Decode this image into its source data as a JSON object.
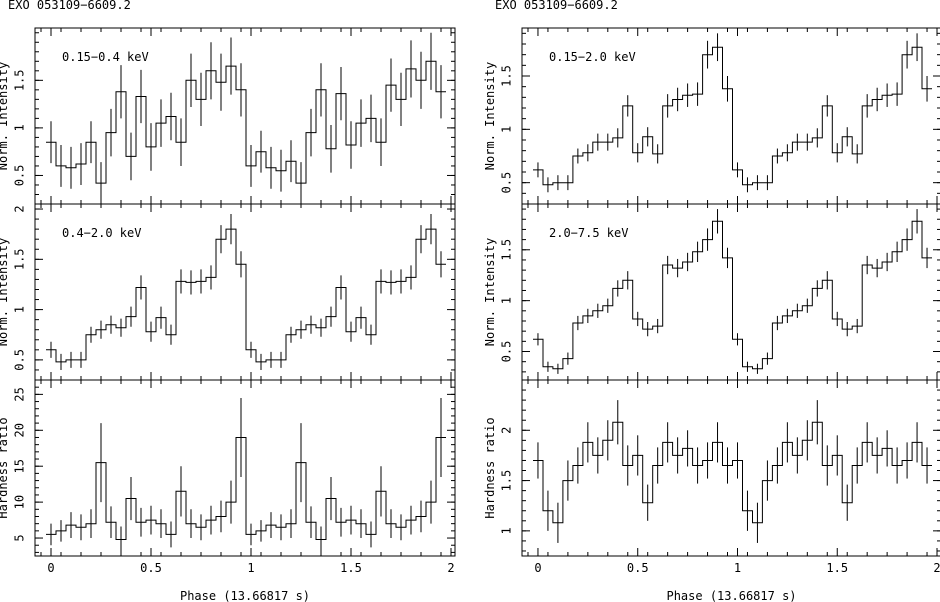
{
  "chart_data": {
    "type": "line",
    "grid": false,
    "figure_style": "monochrome histogram step plots with vertical error bars",
    "columns": [
      {
        "object": "EXO 053109−6609.2",
        "xlabel": "Phase (13.66817 s)",
        "xlim": [
          -0.08,
          2.02
        ],
        "x_ticks": [
          0,
          0.5,
          1,
          1.5,
          2
        ],
        "x_tick_labels": [
          "0",
          "0.5",
          "1",
          "1.5",
          "2"
        ],
        "panels": [
          {
            "label": "0.15−0.4 keV",
            "ylabel": "Norm. Intensity",
            "ylim": [
              0.2,
              2.05
            ],
            "y_ticks": [
              0.5,
              1,
              1.5
            ],
            "y_tick_labels": [
              "0.5",
              "1",
              "1.5"
            ],
            "x": [
              0.0,
              0.05,
              0.1,
              0.15,
              0.2,
              0.25,
              0.3,
              0.35,
              0.4,
              0.45,
              0.5,
              0.55,
              0.6,
              0.65,
              0.7,
              0.75,
              0.8,
              0.85,
              0.9,
              0.95,
              1.0,
              1.05,
              1.1,
              1.15,
              1.2,
              1.25,
              1.3,
              1.35,
              1.4,
              1.45,
              1.5,
              1.55,
              1.6,
              1.65,
              1.7,
              1.75,
              1.8,
              1.85,
              1.9,
              1.95
            ],
            "y": [
              0.85,
              0.6,
              0.58,
              0.62,
              0.85,
              0.42,
              0.95,
              1.38,
              0.7,
              1.33,
              0.8,
              1.05,
              1.12,
              0.85,
              1.5,
              1.3,
              1.6,
              1.48,
              1.65,
              1.4,
              0.6,
              0.75,
              0.58,
              0.55,
              0.65,
              0.42,
              0.95,
              1.4,
              0.78,
              1.36,
              0.82,
              1.05,
              1.1,
              0.85,
              1.45,
              1.3,
              1.62,
              1.5,
              1.7,
              1.38
            ],
            "err": [
              0.22,
              0.22,
              0.22,
              0.22,
              0.22,
              0.22,
              0.25,
              0.28,
              0.25,
              0.28,
              0.25,
              0.25,
              0.25,
              0.25,
              0.28,
              0.28,
              0.3,
              0.3,
              0.3,
              0.28,
              0.22,
              0.22,
              0.22,
              0.22,
              0.22,
              0.22,
              0.25,
              0.28,
              0.25,
              0.28,
              0.25,
              0.25,
              0.25,
              0.25,
              0.28,
              0.28,
              0.3,
              0.3,
              0.3,
              0.28
            ]
          },
          {
            "label": "0.4−2.0 keV",
            "ylabel": "Norm. Intensity",
            "ylim": [
              0.3,
              2.05
            ],
            "y_ticks": [
              0.5,
              1,
              1.5,
              2
            ],
            "y_tick_labels": [
              "0.5",
              "1",
              "1.5",
              "2"
            ],
            "x": [
              0.0,
              0.05,
              0.1,
              0.15,
              0.2,
              0.25,
              0.3,
              0.35,
              0.4,
              0.45,
              0.5,
              0.55,
              0.6,
              0.65,
              0.7,
              0.75,
              0.8,
              0.85,
              0.9,
              0.95,
              1.0,
              1.05,
              1.1,
              1.15,
              1.2,
              1.25,
              1.3,
              1.35,
              1.4,
              1.45,
              1.5,
              1.55,
              1.6,
              1.65,
              1.7,
              1.75,
              1.8,
              1.85,
              1.9,
              1.95
            ],
            "y": [
              0.6,
              0.48,
              0.5,
              0.5,
              0.75,
              0.8,
              0.85,
              0.82,
              0.93,
              1.22,
              0.78,
              0.92,
              0.75,
              1.28,
              1.27,
              1.28,
              1.32,
              1.7,
              1.8,
              1.45,
              0.6,
              0.48,
              0.5,
              0.5,
              0.75,
              0.8,
              0.85,
              0.82,
              0.93,
              1.22,
              0.78,
              0.92,
              0.75,
              1.28,
              1.27,
              1.28,
              1.32,
              1.7,
              1.8,
              1.45
            ],
            "err": [
              0.08,
              0.08,
              0.08,
              0.08,
              0.08,
              0.09,
              0.09,
              0.09,
              0.1,
              0.12,
              0.1,
              0.11,
              0.1,
              0.12,
              0.12,
              0.12,
              0.12,
              0.14,
              0.15,
              0.13,
              0.08,
              0.08,
              0.08,
              0.08,
              0.08,
              0.09,
              0.09,
              0.09,
              0.1,
              0.12,
              0.1,
              0.11,
              0.1,
              0.12,
              0.12,
              0.12,
              0.12,
              0.14,
              0.15,
              0.13
            ]
          },
          {
            "label": "",
            "ylabel": "Hardness ratio",
            "ylim": [
              2.5,
              27.0
            ],
            "y_ticks": [
              5,
              10,
              15,
              20,
              25
            ],
            "y_tick_labels": [
              "5",
              "10",
              "15",
              "20",
              "25"
            ],
            "x": [
              0.0,
              0.05,
              0.1,
              0.15,
              0.2,
              0.25,
              0.3,
              0.35,
              0.4,
              0.45,
              0.5,
              0.55,
              0.6,
              0.65,
              0.7,
              0.75,
              0.8,
              0.85,
              0.9,
              0.95,
              1.0,
              1.05,
              1.1,
              1.15,
              1.2,
              1.25,
              1.3,
              1.35,
              1.4,
              1.45,
              1.5,
              1.55,
              1.6,
              1.65,
              1.7,
              1.75,
              1.8,
              1.85,
              1.9,
              1.95
            ],
            "y": [
              5.5,
              6.0,
              6.8,
              6.5,
              7.0,
              15.5,
              7.2,
              4.8,
              10.5,
              7.2,
              7.5,
              7.0,
              5.5,
              11.5,
              7.0,
              6.5,
              7.5,
              8.0,
              10.0,
              19.0,
              5.5,
              6.0,
              6.8,
              6.5,
              7.0,
              15.5,
              7.2,
              4.8,
              10.5,
              7.2,
              7.5,
              7.0,
              5.5,
              11.5,
              7.0,
              6.5,
              7.5,
              8.0,
              10.0,
              19.0
            ],
            "err": [
              1.5,
              1.5,
              1.8,
              1.8,
              2.0,
              5.5,
              2.2,
              1.8,
              3.0,
              2.0,
              2.0,
              2.0,
              1.8,
              3.5,
              2.0,
              1.8,
              2.0,
              2.2,
              3.0,
              5.5,
              1.5,
              1.5,
              1.8,
              1.8,
              2.0,
              5.5,
              2.2,
              1.8,
              3.0,
              2.0,
              2.0,
              2.0,
              1.8,
              3.5,
              2.0,
              1.8,
              2.0,
              2.2,
              3.0,
              5.5
            ]
          }
        ]
      },
      {
        "object": "EXO 053109−6609.2",
        "xlabel": "Phase (13.66817 s)",
        "xlim": [
          -0.08,
          2.02
        ],
        "x_ticks": [
          0,
          0.5,
          1,
          1.5,
          2
        ],
        "x_tick_labels": [
          "0",
          "0.5",
          "1",
          "1.5",
          "2"
        ],
        "panels": [
          {
            "label": "0.15−2.0 keV",
            "ylabel": "Norm. Intensity",
            "ylim": [
              0.3,
              1.95
            ],
            "y_ticks": [
              0.5,
              1,
              1.5
            ],
            "y_tick_labels": [
              "0.5",
              "1",
              "1.5"
            ],
            "x": [
              0.0,
              0.05,
              0.1,
              0.15,
              0.2,
              0.25,
              0.3,
              0.35,
              0.4,
              0.45,
              0.5,
              0.55,
              0.6,
              0.65,
              0.7,
              0.75,
              0.8,
              0.85,
              0.9,
              0.95,
              1.0,
              1.05,
              1.1,
              1.15,
              1.2,
              1.25,
              1.3,
              1.35,
              1.4,
              1.45,
              1.5,
              1.55,
              1.6,
              1.65,
              1.7,
              1.75,
              1.8,
              1.85,
              1.9,
              1.95
            ],
            "y": [
              0.62,
              0.48,
              0.5,
              0.5,
              0.75,
              0.78,
              0.88,
              0.88,
              0.92,
              1.22,
              0.78,
              0.93,
              0.77,
              1.22,
              1.28,
              1.32,
              1.33,
              1.7,
              1.77,
              1.38,
              0.62,
              0.48,
              0.5,
              0.5,
              0.75,
              0.78,
              0.88,
              0.88,
              0.92,
              1.22,
              0.78,
              0.93,
              0.77,
              1.22,
              1.28,
              1.32,
              1.33,
              1.7,
              1.77,
              1.38
            ],
            "err": [
              0.07,
              0.07,
              0.07,
              0.07,
              0.07,
              0.08,
              0.08,
              0.08,
              0.09,
              0.1,
              0.09,
              0.09,
              0.09,
              0.11,
              0.11,
              0.11,
              0.11,
              0.13,
              0.13,
              0.12,
              0.07,
              0.07,
              0.07,
              0.07,
              0.07,
              0.08,
              0.08,
              0.08,
              0.09,
              0.1,
              0.09,
              0.09,
              0.09,
              0.11,
              0.11,
              0.11,
              0.11,
              0.13,
              0.13,
              0.12
            ]
          },
          {
            "label": "2.0−7.5 keV",
            "ylabel": "Norm. Intensity",
            "ylim": [
              0.22,
              1.95
            ],
            "y_ticks": [
              0.5,
              1,
              1.5
            ],
            "y_tick_labels": [
              "0.5",
              "1",
              "1.5"
            ],
            "x": [
              0.0,
              0.05,
              0.1,
              0.15,
              0.2,
              0.25,
              0.3,
              0.35,
              0.4,
              0.45,
              0.5,
              0.55,
              0.6,
              0.65,
              0.7,
              0.75,
              0.8,
              0.85,
              0.9,
              0.95,
              1.0,
              1.05,
              1.1,
              1.15,
              1.2,
              1.25,
              1.3,
              1.35,
              1.4,
              1.45,
              1.5,
              1.55,
              1.6,
              1.65,
              1.7,
              1.75,
              1.8,
              1.85,
              1.9,
              1.95
            ],
            "y": [
              0.62,
              0.35,
              0.33,
              0.43,
              0.78,
              0.85,
              0.9,
              0.95,
              1.12,
              1.2,
              0.82,
              0.72,
              0.75,
              1.35,
              1.32,
              1.38,
              1.48,
              1.6,
              1.78,
              1.42,
              0.62,
              0.35,
              0.33,
              0.43,
              0.78,
              0.85,
              0.9,
              0.95,
              1.12,
              1.2,
              0.82,
              0.72,
              0.75,
              1.35,
              1.32,
              1.38,
              1.48,
              1.6,
              1.78,
              1.42
            ],
            "err": [
              0.06,
              0.05,
              0.05,
              0.06,
              0.07,
              0.07,
              0.07,
              0.07,
              0.08,
              0.09,
              0.07,
              0.07,
              0.07,
              0.09,
              0.09,
              0.09,
              0.1,
              0.11,
              0.12,
              0.1,
              0.06,
              0.05,
              0.05,
              0.06,
              0.07,
              0.07,
              0.07,
              0.07,
              0.08,
              0.09,
              0.07,
              0.07,
              0.07,
              0.09,
              0.09,
              0.09,
              0.1,
              0.11,
              0.12,
              0.1
            ]
          },
          {
            "label": "",
            "ylabel": "Hardness ratio",
            "ylim": [
              0.75,
              2.5
            ],
            "y_ticks": [
              1,
              1.5,
              2
            ],
            "y_tick_labels": [
              "1",
              "1.5",
              "2"
            ],
            "x": [
              0.0,
              0.05,
              0.1,
              0.15,
              0.2,
              0.25,
              0.3,
              0.35,
              0.4,
              0.45,
              0.5,
              0.55,
              0.6,
              0.65,
              0.7,
              0.75,
              0.8,
              0.85,
              0.9,
              0.95,
              1.0,
              1.05,
              1.1,
              1.15,
              1.2,
              1.25,
              1.3,
              1.35,
              1.4,
              1.45,
              1.5,
              1.55,
              1.6,
              1.65,
              1.7,
              1.75,
              1.8,
              1.85,
              1.9,
              1.95
            ],
            "y": [
              1.7,
              1.2,
              1.08,
              1.5,
              1.65,
              1.88,
              1.75,
              1.9,
              2.08,
              1.65,
              1.75,
              1.28,
              1.65,
              1.88,
              1.75,
              1.82,
              1.65,
              1.7,
              1.88,
              1.65,
              1.7,
              1.2,
              1.08,
              1.5,
              1.65,
              1.88,
              1.75,
              1.9,
              2.08,
              1.65,
              1.75,
              1.28,
              1.65,
              1.88,
              1.75,
              1.82,
              1.65,
              1.7,
              1.88,
              1.65
            ],
            "err": [
              0.18,
              0.2,
              0.2,
              0.2,
              0.18,
              0.2,
              0.18,
              0.2,
              0.22,
              0.2,
              0.2,
              0.18,
              0.18,
              0.2,
              0.18,
              0.18,
              0.18,
              0.18,
              0.2,
              0.18,
              0.18,
              0.2,
              0.2,
              0.2,
              0.18,
              0.2,
              0.18,
              0.2,
              0.22,
              0.2,
              0.2,
              0.18,
              0.18,
              0.2,
              0.18,
              0.18,
              0.18,
              0.18,
              0.2,
              0.18
            ]
          }
        ]
      }
    ]
  }
}
